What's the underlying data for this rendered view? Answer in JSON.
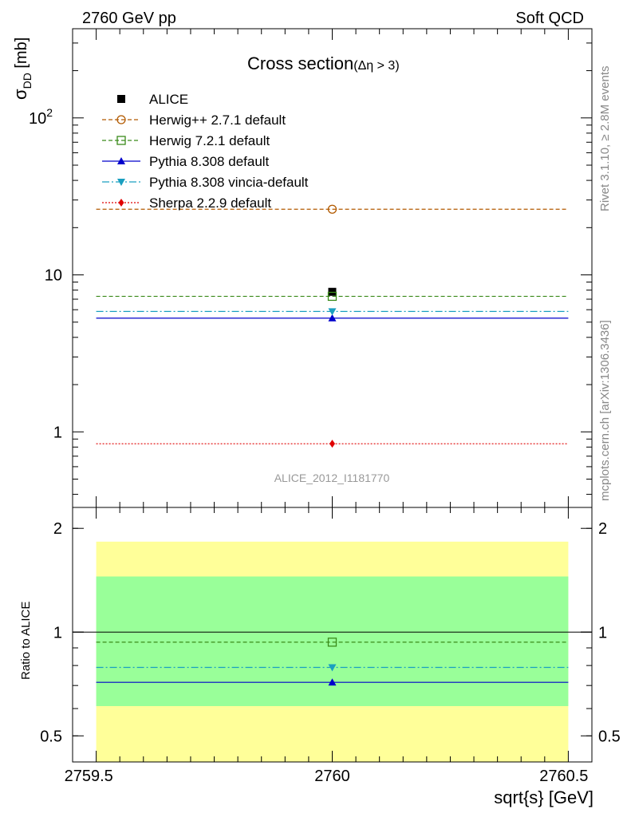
{
  "header": {
    "left": "2760 GeV pp",
    "right": "Soft QCD"
  },
  "side_text": {
    "rivet": "Rivet 3.1.10, ≥ 2.8M events",
    "mcplots": "mcplots.cern.ch [arXiv:1306.3436]"
  },
  "chart_data": [
    {
      "type": "scatter",
      "title": "Cross section",
      "title_suffix": "(Δη > 3)",
      "ylabel": "σ",
      "ylabel_sub": "DD",
      "ylabel_unit": "[mb]",
      "yscale": "log",
      "ylim": [
        0.33,
        370
      ],
      "xlim": [
        2759.45,
        2760.55
      ],
      "yticks": [
        {
          "value": 1,
          "label": "1"
        },
        {
          "value": 10,
          "label": "10"
        },
        {
          "value": 100,
          "label": "10",
          "sup": "2"
        }
      ],
      "watermark": "ALICE_2012_I1181770",
      "legend_position": "top-left",
      "series": [
        {
          "name": "ALICE",
          "marker": "square-filled",
          "color": "#000000",
          "line": "none",
          "x": [
            2760
          ],
          "y": [
            7.8
          ]
        },
        {
          "name": "Herwig++ 2.7.1 default",
          "marker": "circle-open",
          "color": "#b25a00",
          "line": "dashed",
          "x": [
            2760
          ],
          "y": [
            26.2
          ]
        },
        {
          "name": "Herwig 7.2.1 default",
          "marker": "square-open",
          "color": "#3a8a1a",
          "line": "dashed",
          "x": [
            2760
          ],
          "y": [
            7.3
          ]
        },
        {
          "name": "Pythia 8.308 default",
          "marker": "triangle-up",
          "color": "#0000cc",
          "line": "solid",
          "x": [
            2760
          ],
          "y": [
            5.3
          ]
        },
        {
          "name": "Pythia 8.308 vincia-default",
          "marker": "triangle-down",
          "color": "#1a9fc0",
          "line": "dashdot",
          "x": [
            2760
          ],
          "y": [
            5.85
          ]
        },
        {
          "name": "Sherpa 2.2.9 default",
          "marker": "diamond",
          "color": "#e00000",
          "line": "dotted",
          "x": [
            2760
          ],
          "y": [
            0.84
          ]
        }
      ]
    },
    {
      "type": "scatter",
      "ylabel": "Ratio to ALICE",
      "xlabel": "sqrt{s} [GeV]",
      "yscale": "log",
      "ylim": [
        0.42,
        2.3
      ],
      "xlim": [
        2759.45,
        2760.55
      ],
      "xticks": [
        {
          "value": 2759.5,
          "label": "2759.5"
        },
        {
          "value": 2760,
          "label": "2760"
        },
        {
          "value": 2760.5,
          "label": "2760.5"
        }
      ],
      "yticks": [
        {
          "value": 0.5,
          "label": "0.5"
        },
        {
          "value": 1,
          "label": "1"
        },
        {
          "value": 2,
          "label": "2"
        }
      ],
      "bands": [
        {
          "name": "yellow",
          "color": "#ffff99",
          "low": 0.6,
          "high": 1.83
        },
        {
          "name": "green",
          "color": "#99ff99",
          "low": 0.61,
          "high": 1.45
        }
      ],
      "reference_line": 1,
      "series": [
        {
          "name": "Herwig 7.2.1 default",
          "marker": "square-open",
          "color": "#3a8a1a",
          "line": "dashed",
          "x": [
            2760
          ],
          "y": [
            0.935
          ]
        },
        {
          "name": "Pythia 8.308 vincia-default",
          "marker": "triangle-down",
          "color": "#1a9fc0",
          "line": "dashdot",
          "x": [
            2760
          ],
          "y": [
            0.79
          ]
        },
        {
          "name": "Pythia 8.308 default",
          "marker": "triangle-up",
          "color": "#0000cc",
          "line": "solid",
          "x": [
            2760
          ],
          "y": [
            0.715
          ]
        }
      ]
    }
  ]
}
